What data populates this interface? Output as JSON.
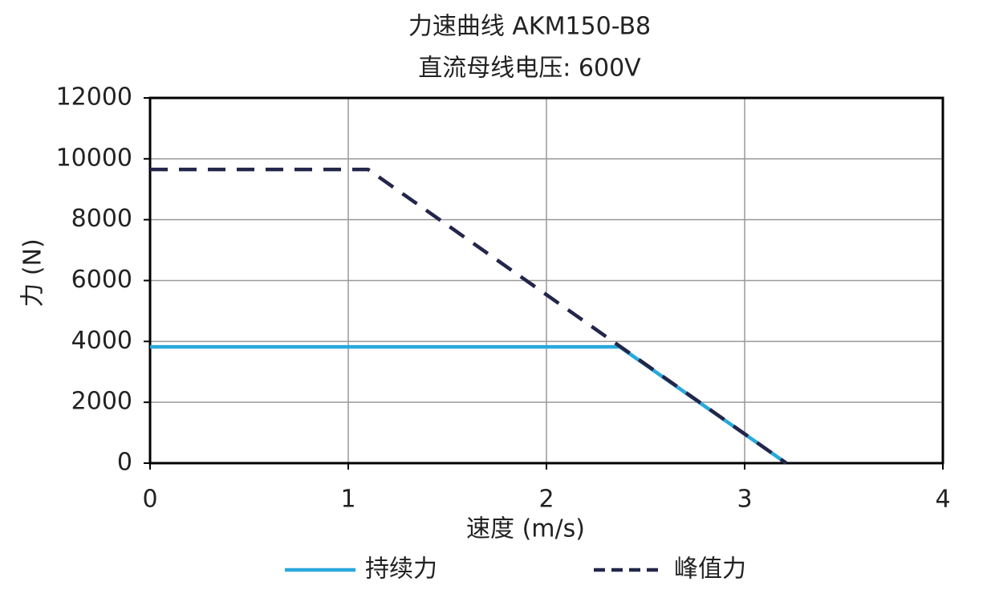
{
  "chart_data": {
    "type": "line",
    "title": "力速曲线 AKM150-B8",
    "subtitle": "直流母线电压: 600V",
    "x_label": "速度 (m/s)",
    "y_label": "力 (N)",
    "xlim": [
      0,
      4
    ],
    "xticks": [
      0,
      1,
      2,
      3,
      4
    ],
    "ylim": [
      0,
      12000
    ],
    "yticks": [
      0,
      2000,
      4000,
      6000,
      8000,
      10000,
      12000
    ],
    "grid": true,
    "legend": "bottom",
    "series": [
      {
        "name": "持续力",
        "color": "#29a8dc",
        "style": "solid",
        "x": [
          0,
          2.37,
          3.21
        ],
        "values": [
          3820,
          3820,
          0
        ]
      },
      {
        "name": "峰值力",
        "color": "#23264a",
        "style": "dashed",
        "x": [
          0,
          1.1,
          3.21
        ],
        "values": [
          9650,
          9650,
          0
        ]
      }
    ]
  }
}
